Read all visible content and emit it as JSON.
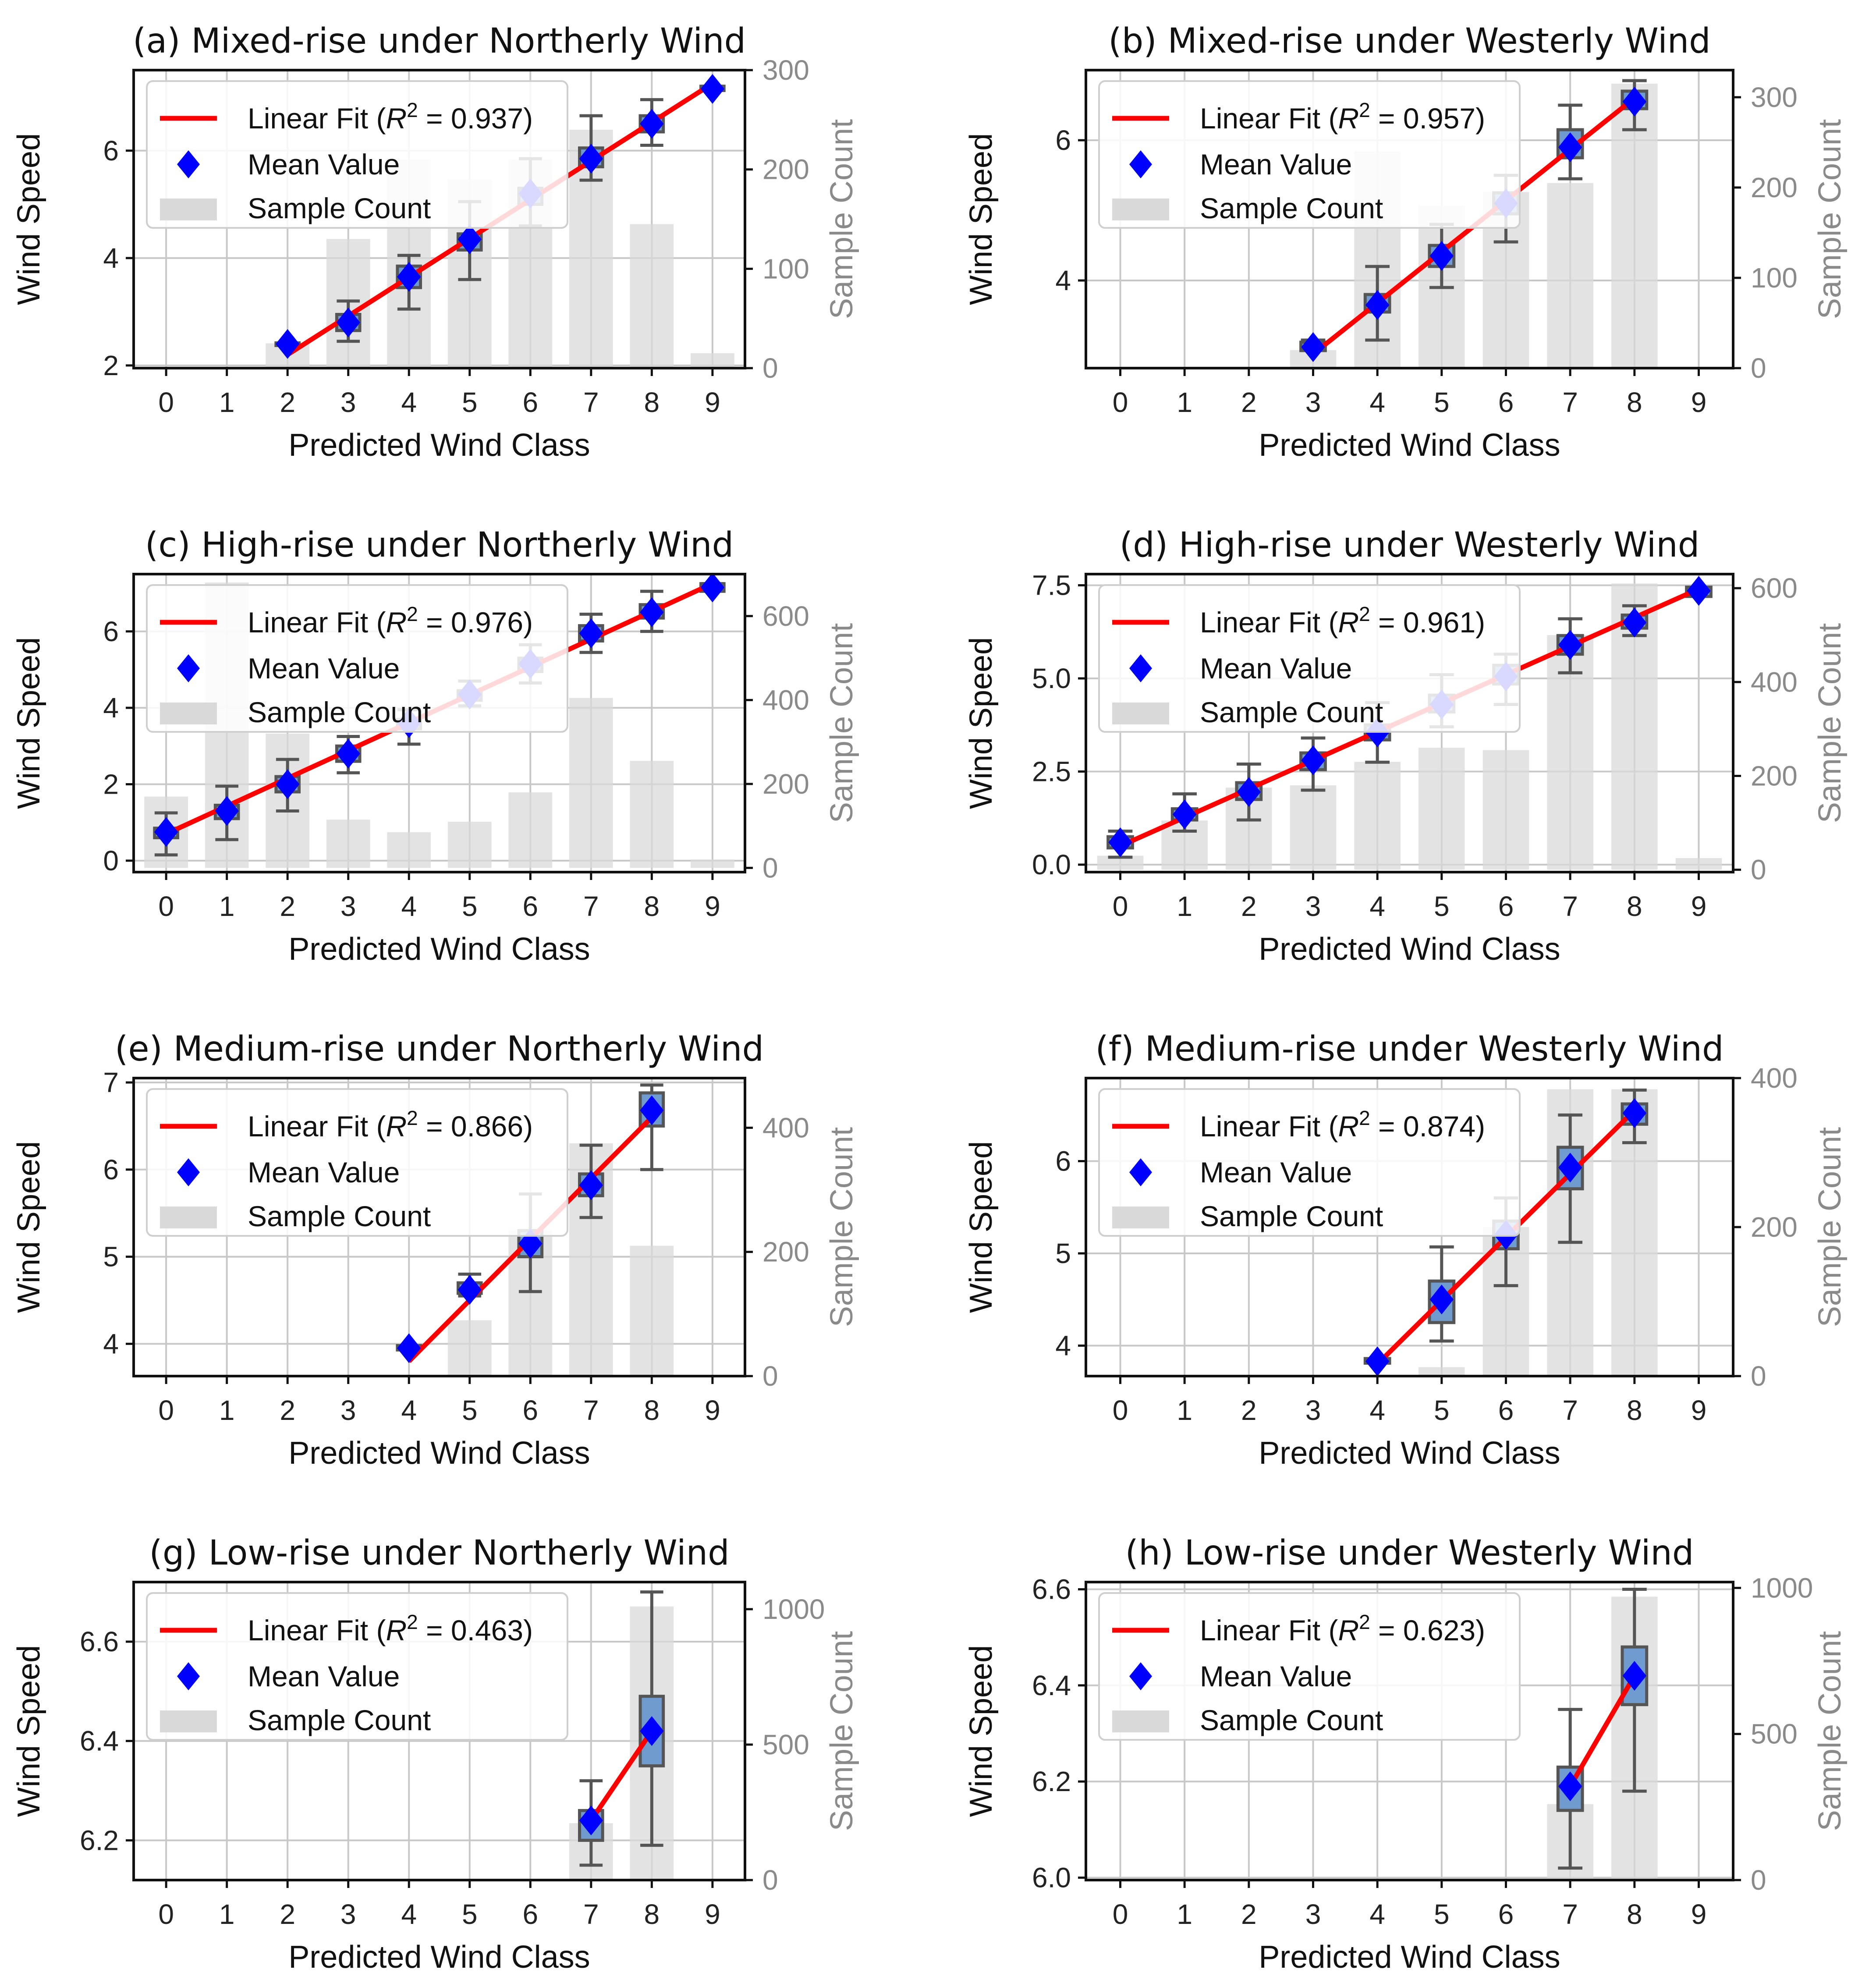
{
  "colors": {
    "fit_line": "#ff0000",
    "mean_marker": "#0000ff",
    "box_fill": "#6f9bcf",
    "bar_fill": "#d9d9d9",
    "whisker": "#555555",
    "grid": "#c8c8c8"
  },
  "chart_data": [
    {
      "type": "bar",
      "title": "(a) Mixed-rise under Northerly Wind",
      "xlabel": "Predicted Wind Class",
      "ylabel": "Wind Speed",
      "y2label": "Sample Count",
      "categories": [
        "0",
        "1",
        "2",
        "3",
        "4",
        "5",
        "6",
        "7",
        "8",
        "9"
      ],
      "ylim": [
        1.95,
        7.5
      ],
      "yticks": [
        2,
        4,
        6
      ],
      "y2lim": [
        0,
        300
      ],
      "y2ticks": [
        0,
        100,
        200,
        300
      ],
      "legend": {
        "fit": "Linear Fit",
        "r2": "0.937",
        "mean": "Mean Value",
        "count": "Sample Count"
      },
      "sample_count": [
        0,
        0,
        25,
        130,
        210,
        190,
        210,
        240,
        145,
        15
      ],
      "boxes": [
        {
          "x": 2,
          "wlo": 2.4,
          "q1": 2.38,
          "med": 2.4,
          "q3": 2.42,
          "whi": 2.4,
          "mean": 2.4
        },
        {
          "x": 3,
          "wlo": 2.45,
          "q1": 2.65,
          "med": 2.8,
          "q3": 2.95,
          "whi": 3.2,
          "mean": 2.8
        },
        {
          "x": 4,
          "wlo": 3.05,
          "q1": 3.45,
          "med": 3.65,
          "q3": 3.85,
          "whi": 4.05,
          "mean": 3.65
        },
        {
          "x": 5,
          "wlo": 3.6,
          "q1": 4.15,
          "med": 4.3,
          "q3": 4.45,
          "whi": 5.05,
          "mean": 4.35
        },
        {
          "x": 6,
          "wlo": 4.6,
          "q1": 5.0,
          "med": 5.15,
          "q3": 5.3,
          "whi": 5.85,
          "mean": 5.2
        },
        {
          "x": 7,
          "wlo": 5.45,
          "q1": 5.7,
          "med": 5.85,
          "q3": 6.05,
          "whi": 6.65,
          "mean": 5.85
        },
        {
          "x": 8,
          "wlo": 6.1,
          "q1": 6.35,
          "med": 6.5,
          "q3": 6.65,
          "whi": 6.95,
          "mean": 6.5
        },
        {
          "x": 9,
          "wlo": 7.15,
          "q1": 7.12,
          "med": 7.15,
          "q3": 7.2,
          "whi": 7.2,
          "mean": 7.15
        }
      ],
      "fit": {
        "x": [
          2,
          9
        ],
        "y": [
          2.2,
          7.25
        ]
      }
    },
    {
      "type": "bar",
      "title": "(b) Mixed-rise under Westerly Wind",
      "xlabel": "Predicted Wind Class",
      "ylabel": "Wind Speed",
      "y2label": "Sample Count",
      "categories": [
        "0",
        "1",
        "2",
        "3",
        "4",
        "5",
        "6",
        "7",
        "8",
        "9"
      ],
      "ylim": [
        2.75,
        7.0
      ],
      "yticks": [
        4,
        6
      ],
      "y2lim": [
        0,
        330
      ],
      "y2ticks": [
        0,
        100,
        200,
        300
      ],
      "legend": {
        "fit": "Linear Fit",
        "r2": "0.957",
        "mean": "Mean Value",
        "count": "Sample Count"
      },
      "sample_count": [
        0,
        0,
        0,
        20,
        240,
        180,
        195,
        205,
        315,
        0
      ],
      "boxes": [
        {
          "x": 3,
          "wlo": 3.05,
          "q1": 3.0,
          "med": 3.05,
          "q3": 3.12,
          "whi": 3.15,
          "mean": 3.05
        },
        {
          "x": 4,
          "wlo": 3.15,
          "q1": 3.55,
          "med": 3.65,
          "q3": 3.8,
          "whi": 4.2,
          "mean": 3.65
        },
        {
          "x": 5,
          "wlo": 3.9,
          "q1": 4.2,
          "med": 4.35,
          "q3": 4.5,
          "whi": 4.8,
          "mean": 4.35
        },
        {
          "x": 6,
          "wlo": 4.55,
          "q1": 4.95,
          "med": 5.1,
          "q3": 5.25,
          "whi": 5.5,
          "mean": 5.1
        },
        {
          "x": 7,
          "wlo": 5.45,
          "q1": 5.75,
          "med": 5.9,
          "q3": 6.15,
          "whi": 6.5,
          "mean": 5.9
        },
        {
          "x": 8,
          "wlo": 6.15,
          "q1": 6.45,
          "med": 6.55,
          "q3": 6.7,
          "whi": 6.85,
          "mean": 6.55
        }
      ],
      "fit": {
        "x": [
          3,
          8
        ],
        "y": [
          2.95,
          6.6
        ]
      }
    },
    {
      "type": "bar",
      "title": "(c) High-rise under Northerly Wind",
      "xlabel": "Predicted Wind Class",
      "ylabel": "Wind Speed",
      "y2label": "Sample Count",
      "categories": [
        "0",
        "1",
        "2",
        "3",
        "4",
        "5",
        "6",
        "7",
        "8",
        "9"
      ],
      "ylim": [
        -0.3,
        7.5
      ],
      "yticks": [
        0,
        2,
        4,
        6
      ],
      "y2lim": [
        -10,
        700
      ],
      "y2ticks": [
        0,
        200,
        400,
        600
      ],
      "legend": {
        "fit": "Linear Fit",
        "r2": "0.976",
        "mean": "Mean Value",
        "count": "Sample Count"
      },
      "sample_count": [
        170,
        680,
        320,
        115,
        85,
        110,
        180,
        405,
        255,
        20
      ],
      "boxes": [
        {
          "x": 0,
          "wlo": 0.15,
          "q1": 0.6,
          "med": 0.75,
          "q3": 0.85,
          "whi": 1.25,
          "mean": 0.75
        },
        {
          "x": 1,
          "wlo": 0.55,
          "q1": 1.1,
          "med": 1.3,
          "q3": 1.45,
          "whi": 1.95,
          "mean": 1.3
        },
        {
          "x": 2,
          "wlo": 1.3,
          "q1": 1.8,
          "med": 2.0,
          "q3": 2.2,
          "whi": 2.65,
          "mean": 2.0
        },
        {
          "x": 3,
          "wlo": 2.3,
          "q1": 2.6,
          "med": 2.8,
          "q3": 3.0,
          "whi": 3.25,
          "mean": 2.8
        },
        {
          "x": 4,
          "wlo": 3.05,
          "q1": 3.45,
          "med": 3.6,
          "q3": 3.7,
          "whi": 3.95,
          "mean": 3.6
        },
        {
          "x": 5,
          "wlo": 4.05,
          "q1": 4.2,
          "med": 4.35,
          "q3": 4.45,
          "whi": 4.7,
          "mean": 4.35
        },
        {
          "x": 6,
          "wlo": 4.65,
          "q1": 4.95,
          "med": 5.15,
          "q3": 5.3,
          "whi": 5.65,
          "mean": 5.15
        },
        {
          "x": 7,
          "wlo": 5.45,
          "q1": 5.75,
          "med": 5.95,
          "q3": 6.15,
          "whi": 6.45,
          "mean": 5.95
        },
        {
          "x": 8,
          "wlo": 6.0,
          "q1": 6.35,
          "med": 6.5,
          "q3": 6.7,
          "whi": 7.05,
          "mean": 6.5
        },
        {
          "x": 9,
          "wlo": 7.1,
          "q1": 7.05,
          "med": 7.15,
          "q3": 7.25,
          "whi": 7.25,
          "mean": 7.15
        }
      ],
      "fit": {
        "x": [
          0,
          9
        ],
        "y": [
          0.7,
          7.25
        ]
      }
    },
    {
      "type": "bar",
      "title": "(d) High-rise under Westerly Wind",
      "xlabel": "Predicted Wind Class",
      "ylabel": "Wind Speed",
      "y2label": "Sample Count",
      "categories": [
        "0",
        "1",
        "2",
        "3",
        "4",
        "5",
        "6",
        "7",
        "8",
        "9"
      ],
      "ylim": [
        -0.2,
        7.8
      ],
      "yticks": [
        0.0,
        2.5,
        5.0,
        7.5
      ],
      "y2lim": [
        -5,
        630
      ],
      "y2ticks": [
        0,
        200,
        400,
        600
      ],
      "legend": {
        "fit": "Linear Fit",
        "r2": "0.961",
        "mean": "Mean Value",
        "count": "Sample Count"
      },
      "sample_count": [
        30,
        105,
        175,
        180,
        230,
        260,
        255,
        500,
        610,
        25
      ],
      "boxes": [
        {
          "x": 0,
          "wlo": 0.2,
          "q1": 0.45,
          "med": 0.6,
          "q3": 0.75,
          "whi": 0.9,
          "mean": 0.6
        },
        {
          "x": 1,
          "wlo": 0.9,
          "q1": 1.2,
          "med": 1.35,
          "q3": 1.5,
          "whi": 1.9,
          "mean": 1.35
        },
        {
          "x": 2,
          "wlo": 1.2,
          "q1": 1.75,
          "med": 1.95,
          "q3": 2.2,
          "whi": 2.7,
          "mean": 1.95
        },
        {
          "x": 3,
          "wlo": 2.0,
          "q1": 2.55,
          "med": 2.8,
          "q3": 3.0,
          "whi": 3.4,
          "mean": 2.8
        },
        {
          "x": 4,
          "wlo": 2.75,
          "q1": 3.35,
          "med": 3.55,
          "q3": 3.75,
          "whi": 4.35,
          "mean": 3.55
        },
        {
          "x": 5,
          "wlo": 3.7,
          "q1": 4.1,
          "med": 4.3,
          "q3": 4.55,
          "whi": 5.1,
          "mean": 4.3
        },
        {
          "x": 6,
          "wlo": 4.3,
          "q1": 4.85,
          "med": 5.05,
          "q3": 5.35,
          "whi": 5.65,
          "mean": 5.05
        },
        {
          "x": 7,
          "wlo": 5.15,
          "q1": 5.65,
          "med": 5.9,
          "q3": 6.15,
          "whi": 6.6,
          "mean": 5.9
        },
        {
          "x": 8,
          "wlo": 6.15,
          "q1": 6.35,
          "med": 6.5,
          "q3": 6.7,
          "whi": 6.95,
          "mean": 6.5
        },
        {
          "x": 9,
          "wlo": 7.35,
          "q1": 7.2,
          "med": 7.35,
          "q3": 7.45,
          "whi": 7.35,
          "mean": 7.35
        }
      ],
      "fit": {
        "x": [
          0,
          9
        ],
        "y": [
          0.5,
          7.4
        ]
      }
    },
    {
      "type": "bar",
      "title": "(e) Medium-rise under Northerly Wind",
      "xlabel": "Predicted Wind Class",
      "ylabel": "Wind Speed",
      "y2label": "Sample Count",
      "categories": [
        "0",
        "1",
        "2",
        "3",
        "4",
        "5",
        "6",
        "7",
        "8",
        "9"
      ],
      "ylim": [
        3.63,
        7.05
      ],
      "yticks": [
        4,
        5,
        6,
        7
      ],
      "y2lim": [
        0,
        480
      ],
      "y2ticks": [
        0,
        200,
        400
      ],
      "legend": {
        "fit": "Linear Fit",
        "r2": "0.866",
        "mean": "Mean Value",
        "count": "Sample Count"
      },
      "sample_count": [
        0,
        0,
        0,
        0,
        0,
        90,
        235,
        375,
        210,
        0
      ],
      "boxes": [
        {
          "x": 4,
          "wlo": 3.95,
          "q1": 3.93,
          "med": 3.95,
          "q3": 3.98,
          "whi": 3.95,
          "mean": 3.95
        },
        {
          "x": 5,
          "wlo": 4.55,
          "q1": 4.58,
          "med": 4.62,
          "q3": 4.7,
          "whi": 4.8,
          "mean": 4.62
        },
        {
          "x": 6,
          "wlo": 4.6,
          "q1": 5.0,
          "med": 5.15,
          "q3": 5.3,
          "whi": 5.72,
          "mean": 5.15
        },
        {
          "x": 7,
          "wlo": 5.45,
          "q1": 5.7,
          "med": 5.82,
          "q3": 5.95,
          "whi": 6.28,
          "mean": 5.82
        },
        {
          "x": 8,
          "wlo": 6.0,
          "q1": 6.5,
          "med": 6.7,
          "q3": 6.88,
          "whi": 6.97,
          "mean": 6.68
        }
      ],
      "fit": {
        "x": [
          4,
          8
        ],
        "y": [
          3.8,
          6.6
        ]
      }
    },
    {
      "type": "bar",
      "title": "(f) Medium-rise under Westerly Wind",
      "xlabel": "Predicted Wind Class",
      "ylabel": "Wind Speed",
      "y2label": "Sample Count",
      "categories": [
        "0",
        "1",
        "2",
        "3",
        "4",
        "5",
        "6",
        "7",
        "8",
        "9"
      ],
      "ylim": [
        3.67,
        6.9
      ],
      "yticks": [
        4,
        5,
        6
      ],
      "y2lim": [
        0,
        400
      ],
      "y2ticks": [
        0,
        200,
        400
      ],
      "legend": {
        "fit": "Linear Fit",
        "r2": "0.874",
        "mean": "Mean Value",
        "count": "Sample Count"
      },
      "sample_count": [
        0,
        0,
        0,
        0,
        0,
        12,
        200,
        385,
        385,
        0
      ],
      "boxes": [
        {
          "x": 4,
          "wlo": 3.83,
          "q1": 3.81,
          "med": 3.83,
          "q3": 3.86,
          "whi": 3.83,
          "mean": 3.83
        },
        {
          "x": 5,
          "wlo": 4.05,
          "q1": 4.25,
          "med": 4.5,
          "q3": 4.7,
          "whi": 5.07,
          "mean": 4.5
        },
        {
          "x": 6,
          "wlo": 4.65,
          "q1": 5.05,
          "med": 5.2,
          "q3": 5.35,
          "whi": 5.6,
          "mean": 5.2
        },
        {
          "x": 7,
          "wlo": 5.12,
          "q1": 5.7,
          "med": 5.95,
          "q3": 6.15,
          "whi": 6.5,
          "mean": 5.93
        },
        {
          "x": 8,
          "wlo": 6.2,
          "q1": 6.4,
          "med": 6.52,
          "q3": 6.62,
          "whi": 6.77,
          "mean": 6.52
        }
      ],
      "fit": {
        "x": [
          4,
          8
        ],
        "y": [
          3.8,
          6.55
        ]
      }
    },
    {
      "type": "bar",
      "title": "(g) Low-rise under Northerly Wind",
      "xlabel": "Predicted Wind Class",
      "ylabel": "Wind Speed",
      "y2label": "Sample Count",
      "categories": [
        "0",
        "1",
        "2",
        "3",
        "4",
        "5",
        "6",
        "7",
        "8",
        "9"
      ],
      "ylim": [
        6.12,
        6.72
      ],
      "yticks": [
        6.2,
        6.4,
        6.6
      ],
      "y2lim": [
        0,
        1100
      ],
      "y2ticks": [
        0,
        500,
        1000
      ],
      "legend": {
        "fit": "Linear Fit",
        "r2": "0.463",
        "mean": "Mean Value",
        "count": "Sample Count"
      },
      "sample_count": [
        0,
        0,
        0,
        0,
        0,
        0,
        0,
        210,
        1010,
        0
      ],
      "boxes": [
        {
          "x": 7,
          "wlo": 6.15,
          "q1": 6.2,
          "med": 6.23,
          "q3": 6.26,
          "whi": 6.32,
          "mean": 6.24
        },
        {
          "x": 8,
          "wlo": 6.19,
          "q1": 6.35,
          "med": 6.43,
          "q3": 6.49,
          "whi": 6.7,
          "mean": 6.42
        }
      ],
      "fit": {
        "x": [
          7,
          8
        ],
        "y": [
          6.24,
          6.42
        ]
      }
    },
    {
      "type": "bar",
      "title": "(h) Low-rise under Westerly Wind",
      "xlabel": "Predicted Wind Class",
      "ylabel": "Wind Speed",
      "y2label": "Sample Count",
      "categories": [
        "0",
        "1",
        "2",
        "3",
        "4",
        "5",
        "6",
        "7",
        "8",
        "9"
      ],
      "ylim": [
        5.995,
        6.615
      ],
      "yticks": [
        6.0,
        6.2,
        6.4,
        6.6
      ],
      "y2lim": [
        0,
        1020
      ],
      "y2ticks": [
        0,
        500,
        1000
      ],
      "legend": {
        "fit": "Linear Fit",
        "r2": "0.623",
        "mean": "Mean Value",
        "count": "Sample Count"
      },
      "sample_count": [
        0,
        0,
        0,
        0,
        0,
        0,
        0,
        260,
        970,
        0
      ],
      "boxes": [
        {
          "x": 7,
          "wlo": 6.02,
          "q1": 6.14,
          "med": 6.19,
          "q3": 6.23,
          "whi": 6.35,
          "mean": 6.19
        },
        {
          "x": 8,
          "wlo": 6.18,
          "q1": 6.36,
          "med": 6.42,
          "q3": 6.48,
          "whi": 6.6,
          "mean": 6.42
        }
      ],
      "fit": {
        "x": [
          7,
          8
        ],
        "y": [
          6.19,
          6.42
        ]
      }
    }
  ]
}
